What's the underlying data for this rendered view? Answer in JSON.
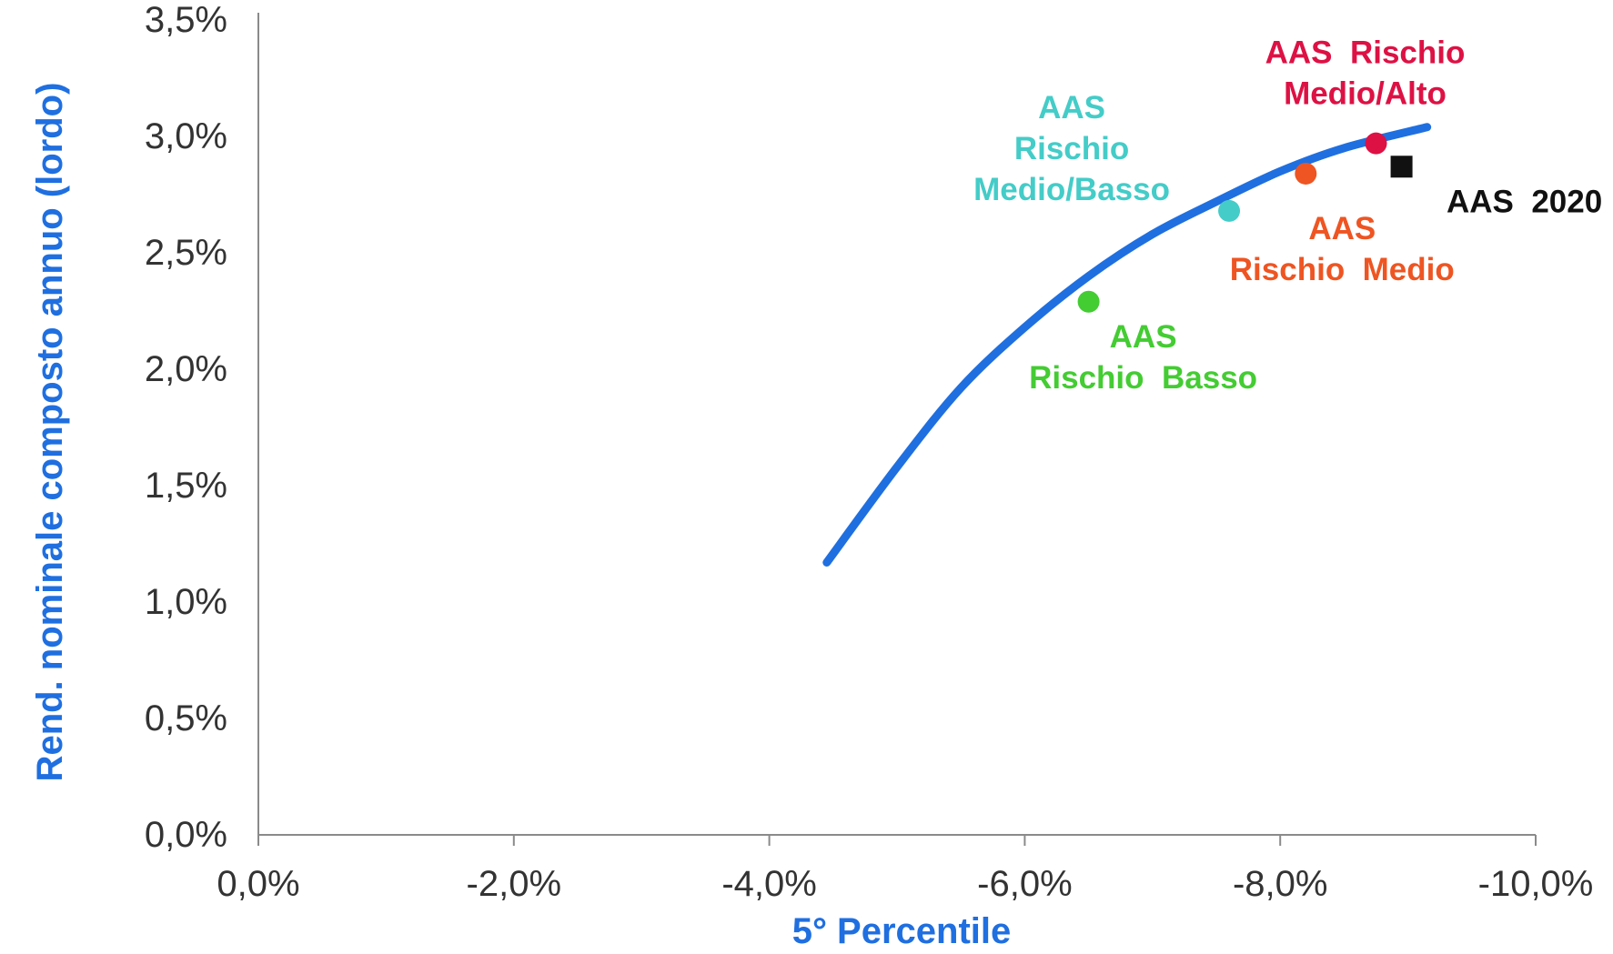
{
  "chart_data": {
    "type": "scatter",
    "title": "",
    "xlabel": "5° Percentile",
    "ylabel": "Rend. nominale composto annuo (lordo)",
    "xlim": [
      0,
      -10
    ],
    "ylim": [
      0,
      3.5
    ],
    "x_ticks": [
      "0,0%",
      "-2,0%",
      "-4,0%",
      "-6,0%",
      "-8,0%",
      "-10,0%"
    ],
    "y_ticks": [
      "0,0%",
      "0,5%",
      "1,0%",
      "1,5%",
      "2,0%",
      "2,5%",
      "3,0%",
      "3,5%"
    ],
    "grid": false,
    "legend": "none",
    "frontier": {
      "color": "#1f6fe0",
      "points": [
        [
          -4.45,
          1.17
        ],
        [
          -5.0,
          1.58
        ],
        [
          -5.5,
          1.92
        ],
        [
          -6.0,
          2.18
        ],
        [
          -6.5,
          2.4
        ],
        [
          -7.0,
          2.58
        ],
        [
          -7.5,
          2.72
        ],
        [
          -8.0,
          2.85
        ],
        [
          -8.5,
          2.95
        ],
        [
          -9.15,
          3.04
        ]
      ]
    },
    "series": [
      {
        "name": "AAS Rischio Basso",
        "label_lines": [
          "AAS",
          "Rischio  Basso"
        ],
        "x": -6.5,
        "y": 2.29,
        "color": "#44cc33",
        "marker": "circle"
      },
      {
        "name": "AAS Rischio Medio/Basso",
        "label_lines": [
          "AAS",
          "Rischio",
          "Medio/Basso"
        ],
        "x": -7.6,
        "y": 2.68,
        "color": "#44ccc8",
        "marker": "circle"
      },
      {
        "name": "AAS Rischio Medio",
        "label_lines": [
          "AAS",
          "Rischio  Medio"
        ],
        "x": -8.2,
        "y": 2.84,
        "color": "#ee5522",
        "marker": "circle"
      },
      {
        "name": "AAS Rischio Medio/Alto",
        "label_lines": [
          "AAS  Rischio",
          "Medio/Alto"
        ],
        "x": -8.75,
        "y": 2.97,
        "color": "#dd1144",
        "marker": "circle"
      },
      {
        "name": "AAS 2020",
        "label_lines": [
          "AAS  2020"
        ],
        "x": -8.95,
        "y": 2.87,
        "color": "#111111",
        "marker": "square"
      }
    ]
  },
  "colors": {
    "axis_title": "#1f6fe0",
    "axis_line": "#8a8a8a",
    "tick_text": "#333333"
  }
}
